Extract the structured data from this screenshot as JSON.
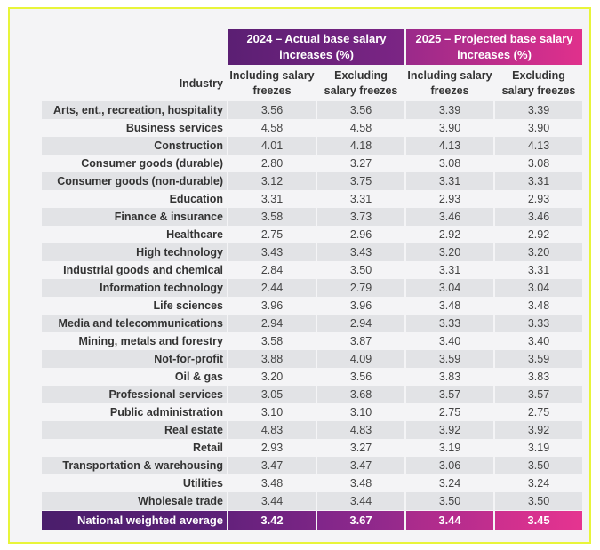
{
  "table": {
    "group_headers": [
      "2024 – Actual base salary increases (%)",
      "2025 – Projected base salary increases (%)"
    ],
    "industry_header": "Industry",
    "sub_headers": [
      "Including salary freezes",
      "Excluding salary freezes",
      "Including salary freezes",
      "Excluding salary freezes"
    ],
    "rows": [
      {
        "industry": "Arts, ent., recreation, hospitality",
        "values": [
          "3.56",
          "3.56",
          "3.39",
          "3.39"
        ]
      },
      {
        "industry": "Business services",
        "values": [
          "4.58",
          "4.58",
          "3.90",
          "3.90"
        ]
      },
      {
        "industry": "Construction",
        "values": [
          "4.01",
          "4.18",
          "4.13",
          "4.13"
        ]
      },
      {
        "industry": "Consumer goods (durable)",
        "values": [
          "2.80",
          "3.27",
          "3.08",
          "3.08"
        ]
      },
      {
        "industry": "Consumer goods (non-durable)",
        "values": [
          "3.12",
          "3.75",
          "3.31",
          "3.31"
        ]
      },
      {
        "industry": "Education",
        "values": [
          "3.31",
          "3.31",
          "2.93",
          "2.93"
        ]
      },
      {
        "industry": "Finance & insurance",
        "values": [
          "3.58",
          "3.73",
          "3.46",
          "3.46"
        ]
      },
      {
        "industry": "Healthcare",
        "values": [
          "2.75",
          "2.96",
          "2.92",
          "2.92"
        ]
      },
      {
        "industry": "High technology",
        "values": [
          "3.43",
          "3.43",
          "3.20",
          "3.20"
        ]
      },
      {
        "industry": "Industrial goods and chemical",
        "values": [
          "2.84",
          "3.50",
          "3.31",
          "3.31"
        ]
      },
      {
        "industry": "Information technology",
        "values": [
          "2.44",
          "2.79",
          "3.04",
          "3.04"
        ]
      },
      {
        "industry": "Life sciences",
        "values": [
          "3.96",
          "3.96",
          "3.48",
          "3.48"
        ]
      },
      {
        "industry": "Media and telecommunications",
        "values": [
          "2.94",
          "2.94",
          "3.33",
          "3.33"
        ]
      },
      {
        "industry": "Mining, metals and forestry",
        "values": [
          "3.58",
          "3.87",
          "3.40",
          "3.40"
        ]
      },
      {
        "industry": "Not-for-profit",
        "values": [
          "3.88",
          "4.09",
          "3.59",
          "3.59"
        ]
      },
      {
        "industry": "Oil & gas",
        "values": [
          "3.20",
          "3.56",
          "3.83",
          "3.83"
        ]
      },
      {
        "industry": "Professional services",
        "values": [
          "3.05",
          "3.68",
          "3.57",
          "3.57"
        ]
      },
      {
        "industry": "Public administration",
        "values": [
          "3.10",
          "3.10",
          "2.75",
          "2.75"
        ]
      },
      {
        "industry": "Real estate",
        "values": [
          "4.83",
          "4.83",
          "3.92",
          "3.92"
        ]
      },
      {
        "industry": "Retail",
        "values": [
          "2.93",
          "3.27",
          "3.19",
          "3.19"
        ]
      },
      {
        "industry": "Transportation & warehousing",
        "values": [
          "3.47",
          "3.47",
          "3.06",
          "3.50"
        ]
      },
      {
        "industry": "Utilities",
        "values": [
          "3.48",
          "3.48",
          "3.24",
          "3.24"
        ]
      },
      {
        "industry": "Wholesale trade",
        "values": [
          "3.44",
          "3.44",
          "3.50",
          "3.50"
        ]
      }
    ],
    "average": {
      "industry": "National weighted average",
      "values": [
        "3.42",
        "3.67",
        "3.44",
        "3.45"
      ]
    }
  },
  "colors": {
    "frame_border": "#e8f53a",
    "header_2024": "#6a2279",
    "header_2025": "#c72d8d",
    "row_alt": "#e2e3e6"
  }
}
